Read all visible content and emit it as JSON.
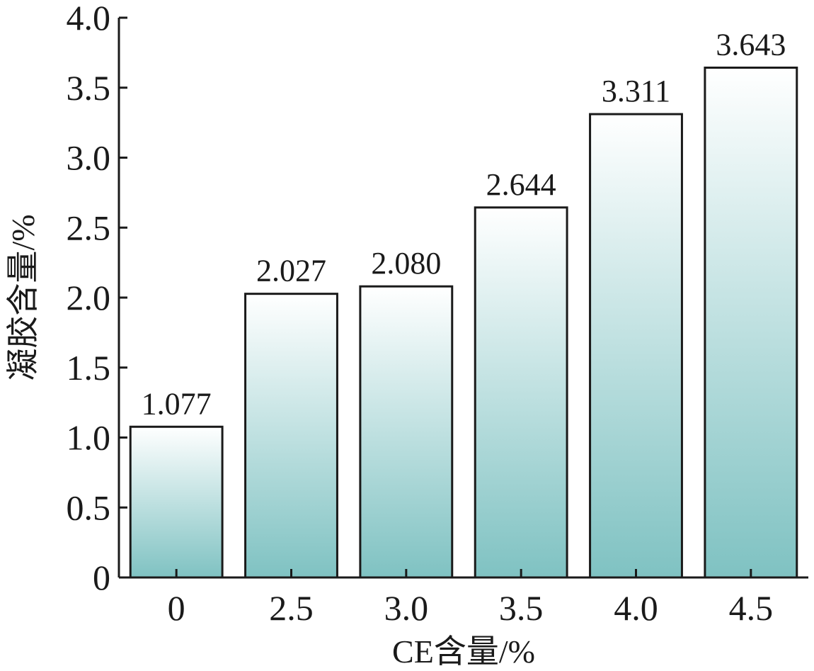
{
  "chart_data": {
    "type": "bar",
    "title": "",
    "xlabel": "CE含量/%",
    "ylabel": "凝胶含量/%",
    "categories": [
      "0",
      "2.5",
      "3.0",
      "3.5",
      "4.0",
      "4.5"
    ],
    "values": [
      1.077,
      2.027,
      2.08,
      2.644,
      3.311,
      3.643
    ],
    "value_labels": [
      "1.077",
      "2.027",
      "2.080",
      "2.644",
      "3.311",
      "3.643"
    ],
    "ylim": [
      0,
      4.0
    ],
    "yticks": [
      0,
      0.5,
      1.0,
      1.5,
      2.0,
      2.5,
      3.0,
      3.5,
      4.0
    ],
    "ytick_labels": [
      "0",
      "0.5",
      "1.0",
      "1.5",
      "2.0",
      "2.5",
      "3.0",
      "3.5",
      "4.0"
    ],
    "grid": false,
    "bar_gradient": {
      "top": "#ffffff",
      "bottom": "#7fc2c2"
    },
    "bar_stroke": "#1a1a1a"
  }
}
